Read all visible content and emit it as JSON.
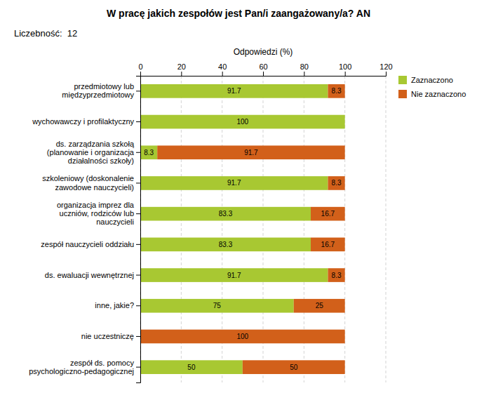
{
  "chart_data": {
    "type": "bar",
    "orientation": "horizontal",
    "stacked": true,
    "data_labels": true,
    "title": "W pracę jakich zespołów jest Pan/i zaangażowany/a? AN",
    "subtitle": "Liczebność:  12",
    "x_label": "Odpowiedzi (%)",
    "xlim": [
      0,
      120
    ],
    "xticks": [
      0,
      20,
      40,
      60,
      80,
      100,
      120
    ],
    "grid": true,
    "legend": "upper right",
    "categories": [
      "przedmiotowy lub\nmiędzyprzedmiotowy",
      "wychowawczy i profilaktyczny",
      "ds. zarządzania szkołą\n(planowanie i organizacja\ndziałalności szkoły)",
      "szkoleniowy (doskonalenie\nzawodowe nauczycieli)",
      "organizacja imprez dla\nuczniów, rodziców lub\nnauczycieli",
      "zespół nauczycieli oddziału",
      "ds. ewaluacji wewnętrznej",
      "inne, jakie?",
      "nie uczestniczę",
      "zespół ds. pomocy\npsychologiczno-pedagogicznej"
    ],
    "series": [
      {
        "name": "Zaznaczono",
        "color": "#a8c832",
        "values": [
          91.7,
          100,
          8.3,
          91.7,
          83.3,
          83.3,
          91.7,
          75,
          0,
          50
        ]
      },
      {
        "name": "Nie zaznaczono",
        "color": "#d2601a",
        "values": [
          8.3,
          0,
          91.7,
          8.3,
          16.7,
          16.7,
          8.3,
          25,
          100,
          50
        ]
      }
    ]
  }
}
